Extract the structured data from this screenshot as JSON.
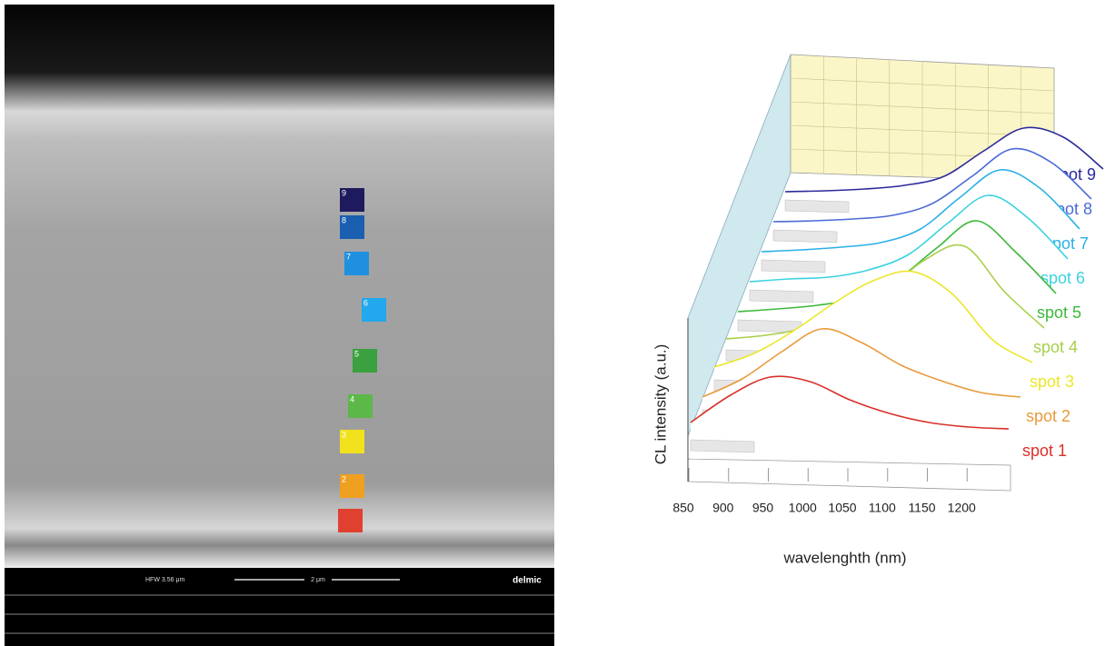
{
  "sem": {
    "info_bar": {
      "hfw": "HFW 3.56 μm",
      "scale": "2 μm",
      "logo": "delmic"
    },
    "spots": [
      {
        "color": "#e04030"
      },
      {
        "label": "2",
        "color": "#f0a020"
      },
      {
        "label": "3",
        "color": "#f2e21e"
      },
      {
        "label": "4",
        "color": "#5cb848"
      },
      {
        "label": "5",
        "color": "#3aa040"
      },
      {
        "label": "6",
        "color": "#22a8ec"
      },
      {
        "label": "7",
        "color": "#1f90e0"
      },
      {
        "label": "8",
        "color": "#1a5fb0"
      },
      {
        "label": "9",
        "color": "#1e1a5e"
      }
    ]
  },
  "chart_data": {
    "type": "waterfall",
    "x_label": "wavelenghth (nm)",
    "y_label": "CL intensity (a.u.)",
    "x": [
      850,
      900,
      950,
      1000,
      1050,
      1100,
      1150,
      1200,
      1250
    ],
    "xlim": [
      850,
      1250
    ],
    "xticks": [
      850,
      900,
      950,
      1000,
      1050,
      1100,
      1150,
      1200
    ],
    "ylim": [
      0,
      1.5
    ],
    "series": [
      {
        "name": "spot 1",
        "color": "#d9302a",
        "values": [
          0.15,
          0.45,
          0.65,
          0.6,
          0.4,
          0.25,
          0.15,
          0.1,
          0.08
        ]
      },
      {
        "name": "spot 2",
        "color": "#e89a3a",
        "values": [
          0.1,
          0.3,
          0.6,
          0.85,
          0.7,
          0.45,
          0.28,
          0.15,
          0.1
        ]
      },
      {
        "name": "spot 3",
        "color": "#ece62a",
        "values": [
          0.1,
          0.25,
          0.5,
          0.8,
          1.05,
          1.15,
          0.9,
          0.4,
          0.15
        ]
      },
      {
        "name": "spot 4",
        "color": "#a8cf4a",
        "values": [
          0.08,
          0.12,
          0.2,
          0.35,
          0.6,
          0.95,
          1.1,
          0.6,
          0.2
        ]
      },
      {
        "name": "spot 5",
        "color": "#3cb83c",
        "values": [
          0.05,
          0.08,
          0.12,
          0.2,
          0.4,
          0.75,
          1.05,
          0.7,
          0.25
        ]
      },
      {
        "name": "spot 6",
        "color": "#3cd2e0",
        "values": [
          0.05,
          0.08,
          0.1,
          0.18,
          0.35,
          0.7,
          1.0,
          0.75,
          0.3
        ]
      },
      {
        "name": "spot 7",
        "color": "#2ab0e8",
        "values": [
          0.05,
          0.07,
          0.1,
          0.15,
          0.3,
          0.65,
          0.95,
          0.75,
          0.3
        ]
      },
      {
        "name": "spot 8",
        "color": "#4a6ad8",
        "values": [
          0.05,
          0.06,
          0.08,
          0.12,
          0.25,
          0.55,
          0.85,
          0.7,
          0.3
        ]
      },
      {
        "name": "spot 9",
        "color": "#2a2a9a",
        "values": [
          0.05,
          0.06,
          0.08,
          0.12,
          0.22,
          0.5,
          0.75,
          0.65,
          0.3
        ]
      }
    ]
  }
}
